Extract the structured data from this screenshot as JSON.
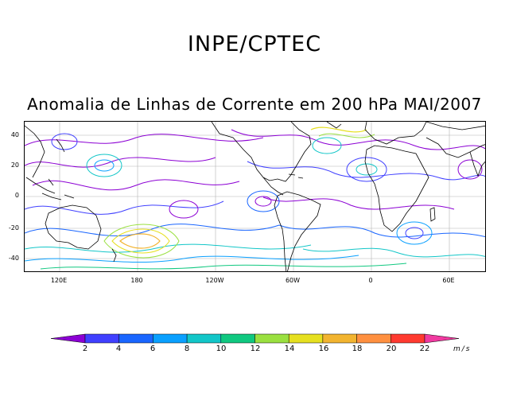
{
  "header": {
    "org": "INPE/CPTEC",
    "title": "Anomalia de Linhas de Corrente em 200 hPa MAI/2007"
  },
  "map": {
    "lat_labels": [
      "40",
      "20",
      "0",
      "-20",
      "-40"
    ],
    "lon_labels": [
      "120E",
      "180",
      "120W",
      "60W",
      "0",
      "60E"
    ]
  },
  "colorbar": {
    "ticks": [
      "2",
      "4",
      "6",
      "8",
      "10",
      "12",
      "14",
      "16",
      "18",
      "20",
      "22"
    ],
    "unit": "m/s",
    "colors": [
      "#8c00d4",
      "#4040ff",
      "#1a66ff",
      "#0aa0ff",
      "#12c6c8",
      "#10c880",
      "#9ae040",
      "#e6e020",
      "#f2b430",
      "#ff9040",
      "#ff3a30",
      "#f03aa0"
    ]
  }
}
